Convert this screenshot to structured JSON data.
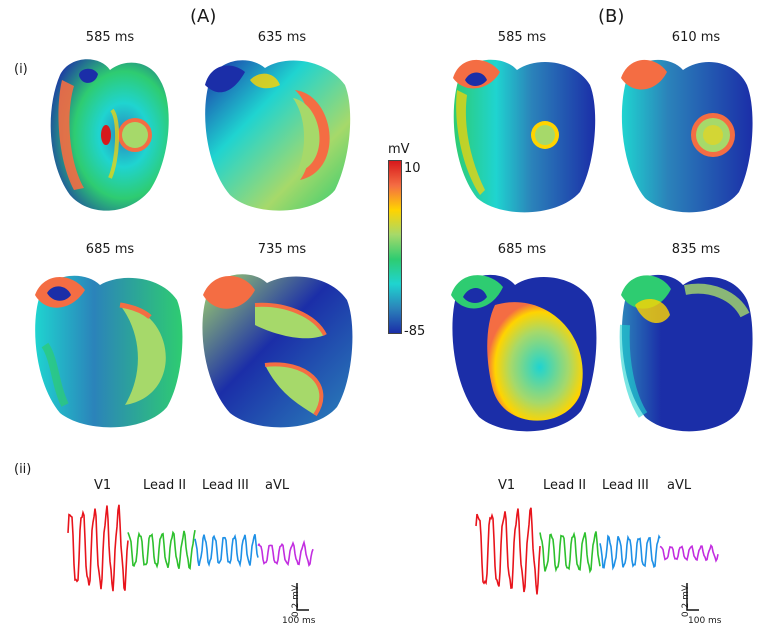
{
  "panels": {
    "A": {
      "title": "(A)",
      "times": [
        "585 ms",
        "635 ms",
        "685 ms",
        "735 ms"
      ]
    },
    "B": {
      "title": "(B)",
      "times": [
        "585 ms",
        "610 ms",
        "685 ms",
        "835 ms"
      ]
    }
  },
  "row_labels": {
    "i": "(i)",
    "ii": "(ii)"
  },
  "colorbar": {
    "unit": "mV",
    "max": "10",
    "min": "-85",
    "colors": [
      "#d7191c",
      "#f46d43",
      "#ffd400",
      "#a6d96a",
      "#2ecc71",
      "#1fd4d0",
      "#2b83ba",
      "#1b2ea8"
    ]
  },
  "ecg_leads": [
    "V1",
    "Lead II",
    "Lead III",
    "aVL"
  ],
  "ecg_colors": {
    "V1": "#e8141c",
    "Lead II": "#2ec02e",
    "Lead III": "#1e90e6",
    "aVL": "#c22ee0"
  },
  "scale_bar": {
    "voltage": "0.2 mV",
    "time": "100 ms"
  }
}
